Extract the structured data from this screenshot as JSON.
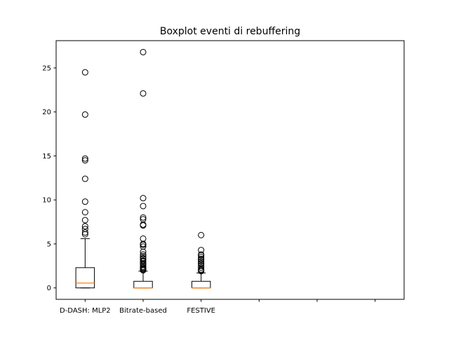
{
  "chart_data": {
    "type": "boxplot",
    "title": "Boxplot eventi di rebuffering",
    "xlabel": "",
    "ylabel": "",
    "ylim": [
      -1.3,
      28.1
    ],
    "yticks": [
      0,
      5,
      10,
      15,
      20,
      25
    ],
    "ytick_labels": [
      "0",
      "5",
      "10",
      "15",
      "20",
      "25"
    ],
    "x_slots": 6,
    "categories": [
      "D-DASH: MLP2",
      "Bitrate-based",
      "FESTIVE",
      "",
      "",
      ""
    ],
    "grid": false,
    "colors": {
      "box": "#000000",
      "median": "#ff7f0e",
      "axes": "#000000",
      "background": "#ffffff"
    },
    "boxes": [
      {
        "label": "D-DASH: MLP2",
        "whisker_low": 0,
        "q1": 0,
        "median": 0.55,
        "q3": 2.3,
        "whisker_high": 5.6,
        "outliers": [
          24.5,
          19.7,
          14.7,
          14.5,
          12.4,
          9.8,
          8.6,
          7.7,
          7.0,
          6.7,
          6.3,
          6.1
        ]
      },
      {
        "label": "Bitrate-based",
        "whisker_low": 0,
        "q1": 0,
        "median": 0,
        "q3": 0.75,
        "whisker_high": 1.9,
        "outliers": [
          26.8,
          22.1,
          10.2,
          9.3,
          8.0,
          7.8,
          7.2,
          7.1,
          5.6,
          5.0,
          4.9,
          4.7,
          4.1,
          3.8,
          3.6,
          3.4,
          3.3,
          3.1,
          3.0,
          2.8,
          2.7,
          2.6,
          2.4,
          2.3,
          2.2,
          2.1,
          2.0
        ]
      },
      {
        "label": "FESTIVE",
        "whisker_low": 0,
        "q1": 0,
        "median": 0,
        "q3": 0.75,
        "whisker_high": 1.7,
        "outliers": [
          6.0,
          4.3,
          3.8,
          3.7,
          3.5,
          3.3,
          3.2,
          3.0,
          2.8,
          2.7,
          2.5,
          2.3,
          2.1,
          2.0,
          1.9
        ]
      }
    ]
  }
}
